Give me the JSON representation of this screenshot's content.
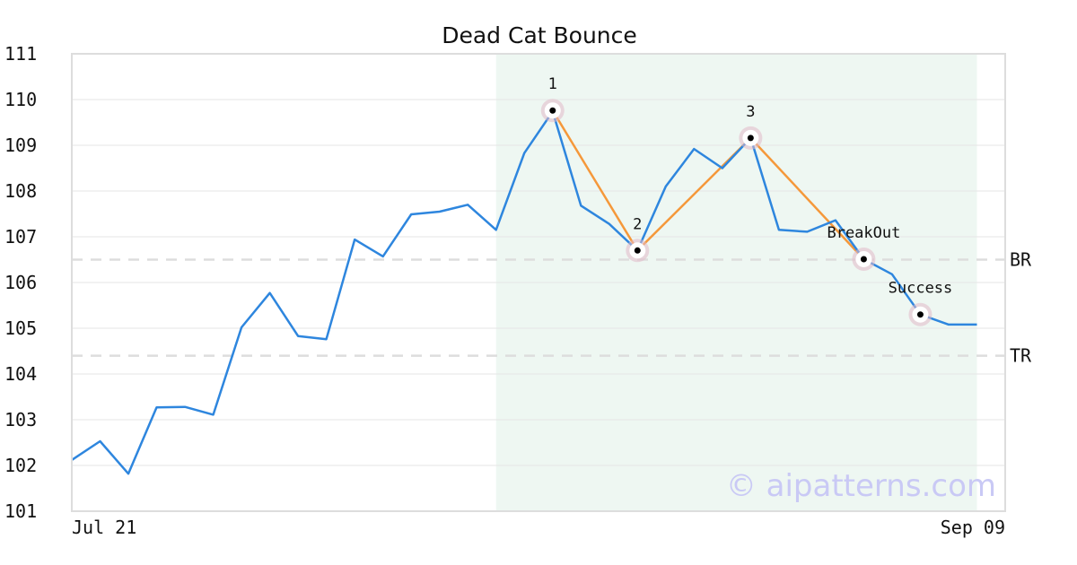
{
  "chart_data": {
    "type": "line",
    "title": "Dead Cat Bounce",
    "xlabel": "",
    "ylabel": "",
    "x_tick_labels": [
      "Jul 21",
      "Sep 09"
    ],
    "x_range": [
      0,
      33
    ],
    "ylim": [
      101,
      111
    ],
    "y_ticks": [
      101,
      102,
      103,
      104,
      105,
      106,
      107,
      108,
      109,
      110,
      111
    ],
    "grid": true,
    "series": [
      {
        "color": "#2e86de",
        "x": [
          0,
          1,
          2,
          3,
          4,
          5,
          6,
          7,
          8,
          9,
          10,
          11,
          12,
          13,
          14,
          15,
          16,
          17,
          18,
          19,
          20,
          21,
          22,
          23,
          24,
          25,
          26,
          27,
          28,
          29,
          30,
          31,
          32
        ],
        "values": [
          102.12,
          102.53,
          101.82,
          103.27,
          103.28,
          103.11,
          105.02,
          105.77,
          104.83,
          104.76,
          106.94,
          106.57,
          107.49,
          107.55,
          107.7,
          107.15,
          108.83,
          109.74,
          107.68,
          107.28,
          106.7,
          108.1,
          108.92,
          108.5,
          109.16,
          107.15,
          107.11,
          107.36,
          106.51,
          106.18,
          105.3,
          105.08,
          105.08
        ]
      }
    ],
    "pattern": {
      "color": "#f5983a",
      "points": [
        {
          "x": 17,
          "y": 109.76,
          "label": "1"
        },
        {
          "x": 20,
          "y": 106.7,
          "label": "2"
        },
        {
          "x": 24,
          "y": 109.16,
          "label": "3"
        },
        {
          "x": 28,
          "y": 106.51,
          "label": "BreakOut"
        },
        {
          "x": 30,
          "y": 105.3,
          "label": "Success"
        }
      ],
      "segments": [
        [
          0,
          1
        ],
        [
          1,
          2
        ],
        [
          2,
          3
        ]
      ],
      "highlight_range": [
        15,
        32
      ],
      "highlight_color": "#eef7f2"
    },
    "levels": [
      {
        "label": "BR",
        "y": 106.5
      },
      {
        "label": "TR",
        "y": 104.4
      }
    ],
    "watermark": "© aipatterns.com"
  }
}
